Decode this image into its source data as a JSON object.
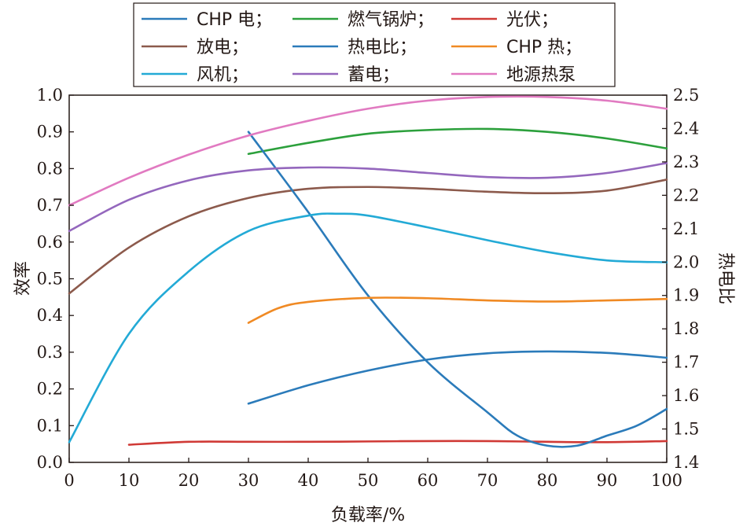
{
  "chart_data": {
    "type": "line",
    "xlabel": "负载率/%",
    "ylabel_left": "效率",
    "ylabel_right": "热电比",
    "xlim": [
      0,
      100
    ],
    "ylim_left": [
      0,
      1.0
    ],
    "ylim_right": [
      1.4,
      2.5
    ],
    "xticks": [
      "0",
      "10",
      "20",
      "30",
      "40",
      "50",
      "60",
      "70",
      "80",
      "90",
      "100"
    ],
    "yticks_left": [
      "0.0",
      "0.1",
      "0.2",
      "0.3",
      "0.4",
      "0.5",
      "0.6",
      "0.7",
      "0.8",
      "0.9",
      "1.0"
    ],
    "yticks_right": [
      "1.4",
      "1.5",
      "1.6",
      "1.7",
      "1.8",
      "1.9",
      "2.0",
      "2.1",
      "2.2",
      "2.3",
      "2.4",
      "2.5"
    ],
    "legend_position": "top",
    "grid": false,
    "series": [
      {
        "name": "CHP 电；",
        "color": "#2b7bba",
        "axis": "left",
        "x": [
          30,
          40,
          50,
          60,
          70,
          80,
          90,
          100
        ],
        "y": [
          0.16,
          0.21,
          0.25,
          0.28,
          0.297,
          0.302,
          0.298,
          0.285
        ]
      },
      {
        "name": "燃气锅炉；",
        "color": "#2ca03c",
        "axis": "left",
        "x": [
          30,
          40,
          50,
          60,
          70,
          80,
          90,
          100
        ],
        "y": [
          0.84,
          0.87,
          0.895,
          0.905,
          0.908,
          0.9,
          0.882,
          0.855
        ]
      },
      {
        "name": "光伏；",
        "color": "#d03a36",
        "axis": "left",
        "x": [
          10,
          20,
          30,
          40,
          50,
          60,
          70,
          80,
          90,
          100
        ],
        "y": [
          0.048,
          0.056,
          0.056,
          0.056,
          0.057,
          0.058,
          0.058,
          0.056,
          0.055,
          0.058
        ]
      },
      {
        "name": "放电；",
        "color": "#8c5a4c",
        "axis": "left",
        "x": [
          0,
          10,
          20,
          30,
          40,
          50,
          60,
          70,
          80,
          90,
          100
        ],
        "y": [
          0.46,
          0.585,
          0.67,
          0.72,
          0.745,
          0.75,
          0.745,
          0.737,
          0.733,
          0.74,
          0.77
        ]
      },
      {
        "name": "热电比；",
        "color": "#2b7bba",
        "axis": "right",
        "x": [
          30,
          40,
          50,
          60,
          70,
          75,
          80,
          85,
          90,
          95,
          100
        ],
        "y": [
          2.39,
          2.15,
          1.9,
          1.7,
          1.55,
          1.48,
          1.45,
          1.45,
          1.48,
          1.51,
          1.56
        ]
      },
      {
        "name": "CHP 热；",
        "color": "#f08a24",
        "axis": "left",
        "x": [
          30,
          35,
          40,
          50,
          60,
          70,
          80,
          90,
          100
        ],
        "y": [
          0.38,
          0.42,
          0.437,
          0.448,
          0.447,
          0.441,
          0.438,
          0.441,
          0.445
        ]
      },
      {
        "name": "风机；",
        "color": "#23aad6",
        "axis": "left",
        "x": [
          0,
          10,
          20,
          30,
          40,
          45,
          50,
          60,
          70,
          80,
          90,
          100
        ],
        "y": [
          0.055,
          0.35,
          0.52,
          0.63,
          0.672,
          0.677,
          0.672,
          0.64,
          0.605,
          0.573,
          0.55,
          0.545
        ]
      },
      {
        "name": "蓄电；",
        "color": "#9467bd",
        "axis": "left",
        "x": [
          0,
          10,
          20,
          30,
          40,
          50,
          60,
          70,
          80,
          90,
          100
        ],
        "y": [
          0.63,
          0.715,
          0.768,
          0.795,
          0.803,
          0.8,
          0.788,
          0.777,
          0.775,
          0.788,
          0.815
        ]
      },
      {
        "name": "地源热泵",
        "color": "#e17ac1",
        "axis": "left",
        "x": [
          0,
          10,
          20,
          30,
          40,
          50,
          60,
          70,
          80,
          90,
          100
        ],
        "y": [
          0.7,
          0.775,
          0.838,
          0.89,
          0.93,
          0.963,
          0.985,
          0.995,
          0.995,
          0.985,
          0.963
        ]
      }
    ]
  }
}
